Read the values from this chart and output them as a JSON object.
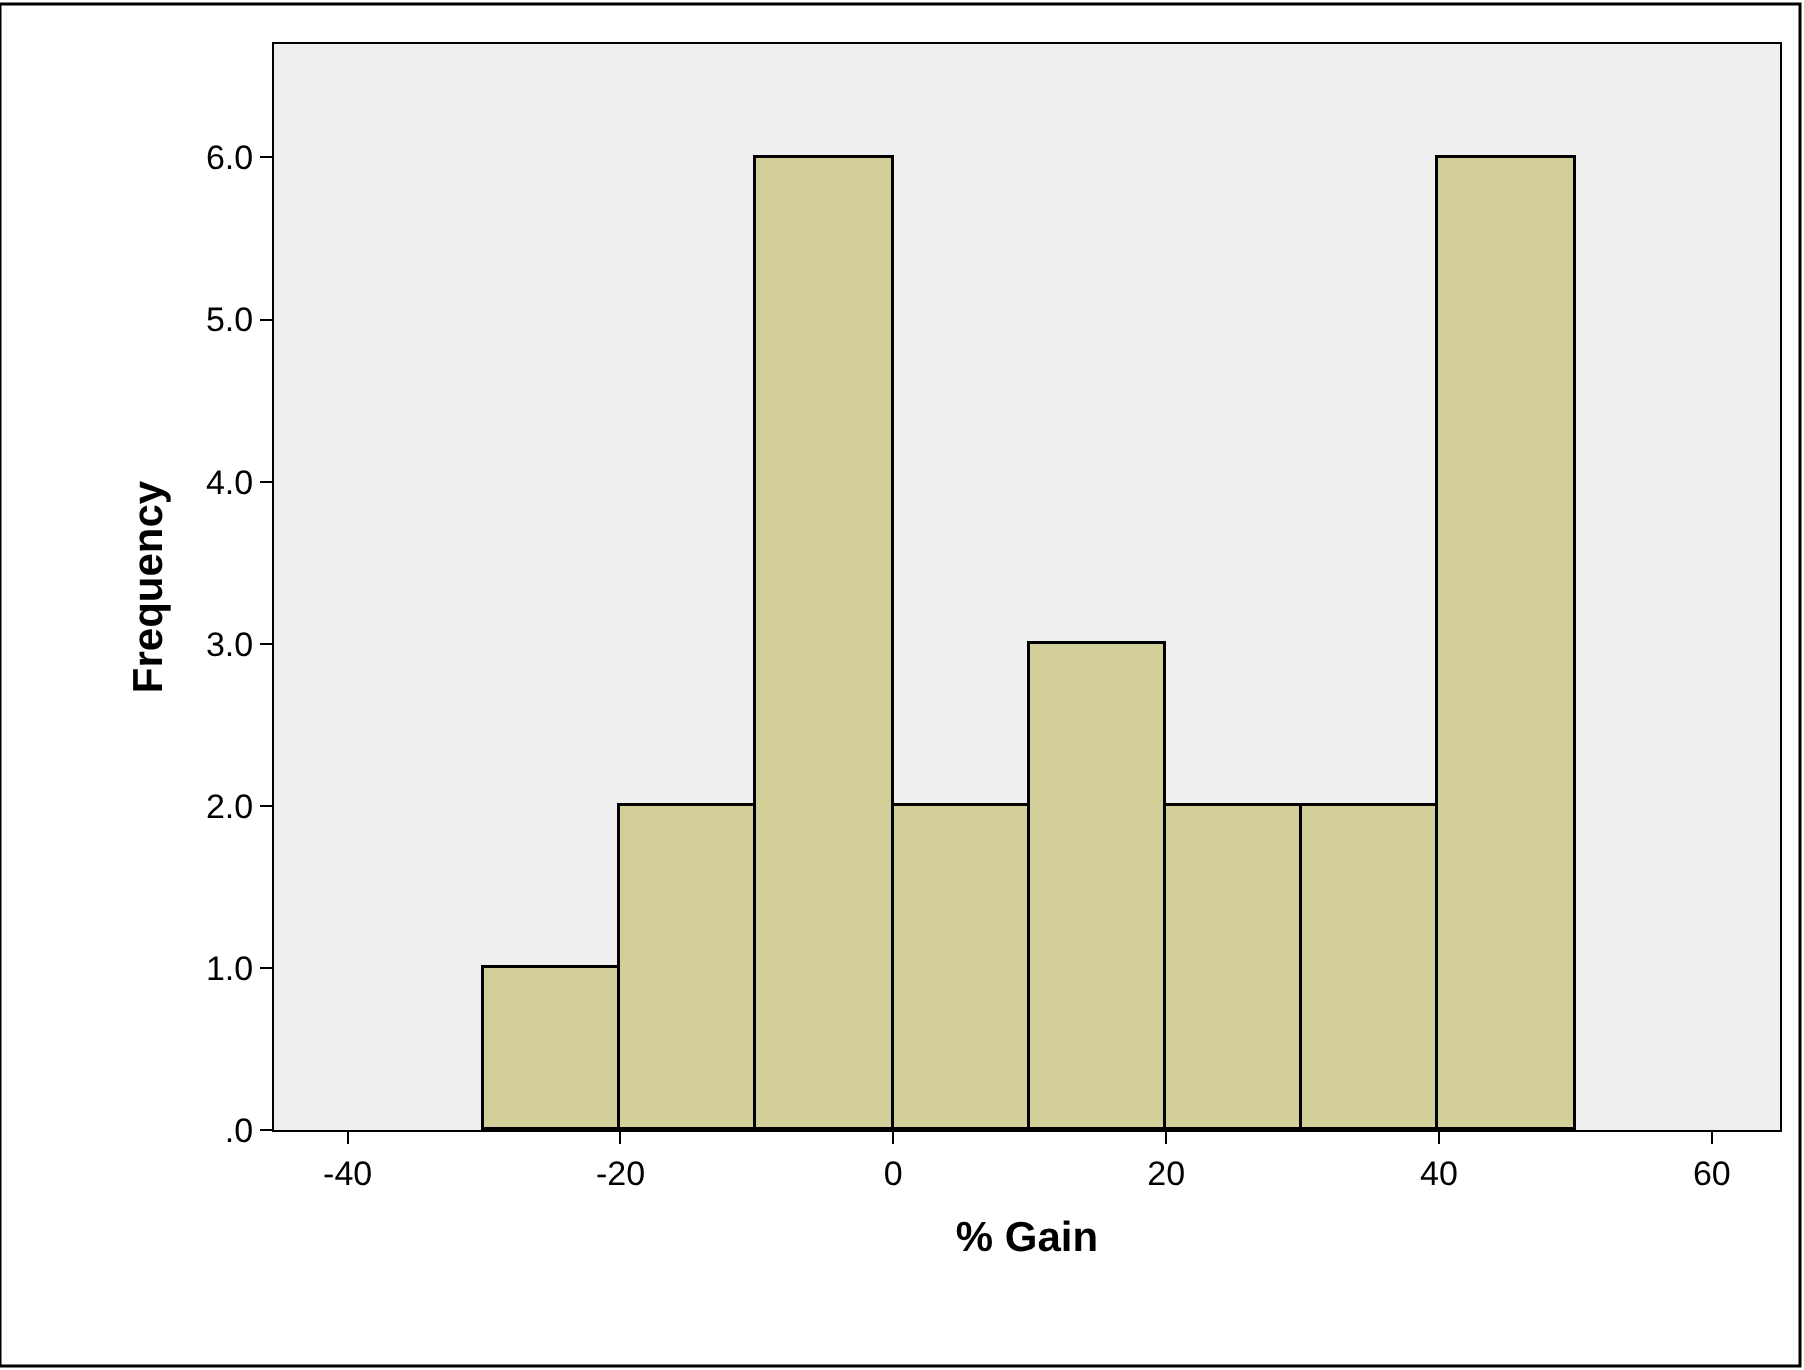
{
  "chart_data": {
    "type": "histogram",
    "xlabel": "% Gain",
    "ylabel": "Frequency",
    "bins": [
      -30,
      -20,
      -10,
      0,
      10,
      20,
      30,
      40,
      50
    ],
    "values": [
      1,
      2,
      6,
      2,
      3,
      2,
      2,
      6
    ],
    "color": "#d3cf98",
    "xlim": [
      -45.4,
      65
    ],
    "xticks": [
      -40,
      -20,
      0,
      20,
      40,
      60
    ],
    "ylim": [
      0,
      6.7
    ],
    "yticks": [
      {
        "value": 0,
        "label": ".0"
      },
      {
        "value": 1,
        "label": "1.0"
      },
      {
        "value": 2,
        "label": "2.0"
      },
      {
        "value": 3,
        "label": "3.0"
      },
      {
        "value": 4,
        "label": "4.0"
      },
      {
        "value": 5,
        "label": "5.0"
      },
      {
        "value": 6,
        "label": "6.0"
      }
    ],
    "grid": false
  }
}
